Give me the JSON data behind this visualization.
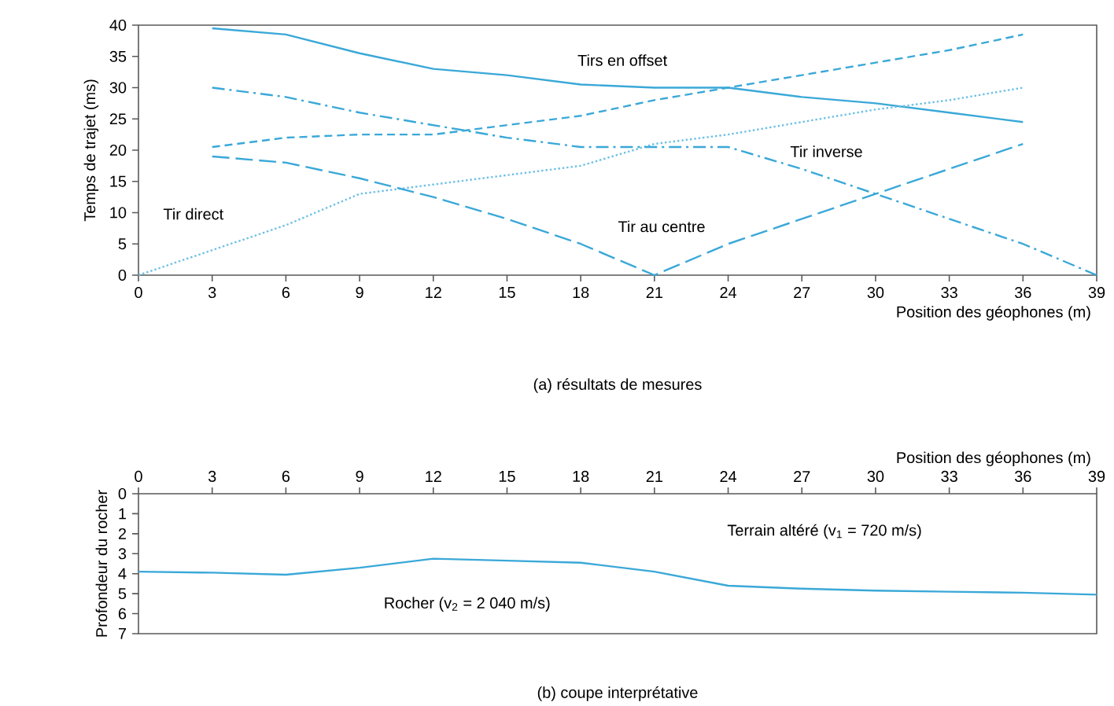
{
  "chart_data": [
    {
      "type": "line",
      "xlabel": "Position des géophones (m)",
      "ylabel": "Temps de trajet (ms)",
      "xlim": [
        0,
        39
      ],
      "xticks": [
        0,
        3,
        6,
        9,
        12,
        15,
        18,
        21,
        24,
        27,
        30,
        33,
        36,
        39
      ],
      "ylim": [
        0,
        40
      ],
      "yticks": [
        0,
        5,
        10,
        15,
        20,
        25,
        30,
        35,
        40
      ],
      "series": [
        {
          "color": "#3aa8d8",
          "line_style": "solid",
          "x": [
            3,
            6,
            9,
            12,
            15,
            18,
            21,
            24,
            27,
            30,
            33,
            36
          ],
          "values": [
            39.5,
            38.5,
            35.5,
            33,
            32,
            30.5,
            30,
            30,
            28.5,
            27.5,
            26,
            24.5
          ]
        },
        {
          "color": "#3aa8d8",
          "line_style": "dashed",
          "x": [
            3,
            6,
            9,
            12,
            15,
            18,
            21,
            24,
            27,
            30,
            33,
            36
          ],
          "values": [
            20.5,
            22,
            22.5,
            22.5,
            24,
            25.5,
            28,
            30,
            32,
            34,
            36,
            38.5
          ]
        },
        {
          "color": "#6cc0e4",
          "line_style": "dotted",
          "x": [
            0,
            3,
            6,
            9,
            12,
            15,
            18,
            21,
            24,
            27,
            30,
            33,
            36
          ],
          "values": [
            0,
            4,
            8,
            13,
            14.5,
            16,
            17.5,
            21,
            22.5,
            24.5,
            26.5,
            28,
            30
          ]
        },
        {
          "color": "#3aa8d8",
          "line_style": "dashdot",
          "x": [
            3,
            6,
            9,
            12,
            15,
            18,
            21,
            24,
            27,
            30,
            33,
            36,
            39
          ],
          "values": [
            30,
            28.5,
            26,
            24,
            22,
            20.5,
            20.5,
            20.5,
            17,
            13,
            9,
            5,
            0
          ]
        },
        {
          "color": "#3aa8d8",
          "line_style": "longdashed",
          "x": [
            3,
            6,
            9,
            12,
            15,
            18,
            21,
            24,
            27,
            30,
            33,
            36
          ],
          "values": [
            19,
            18,
            15.5,
            12.5,
            9,
            5,
            0,
            5,
            9,
            13,
            17,
            21
          ]
        }
      ],
      "annotations": [
        "Tirs en offset",
        "Tir inverse",
        "Tir direct",
        "Tir au centre",
        "(a) résultats de mesures"
      ]
    },
    {
      "type": "line",
      "xlabel": "Position des géophones (m)",
      "ylabel": "Profondeur du rocher",
      "xlim": [
        0,
        39
      ],
      "xticks": [
        0,
        3,
        6,
        9,
        12,
        15,
        18,
        21,
        24,
        27,
        30,
        33,
        36,
        39
      ],
      "ylim": [
        7,
        0
      ],
      "yticks": [
        0,
        1,
        2,
        3,
        4,
        5,
        6,
        7
      ],
      "series": [
        {
          "color": "#3aa8d8",
          "line_style": "solid",
          "x": [
            0,
            3,
            6,
            9,
            12,
            15,
            18,
            21,
            24,
            27,
            30,
            33,
            36,
            39
          ],
          "values": [
            3.9,
            3.95,
            4.05,
            3.7,
            3.25,
            3.35,
            3.45,
            3.9,
            4.6,
            4.75,
            4.85,
            4.9,
            4.95,
            5.05
          ]
        }
      ],
      "annotations": [
        "Terrain altéré (v$_{1}$ = 720 m/s)",
        "Rocher (v$_{2}$ = 2 040 m/s)",
        "(b) coupe interprétative"
      ]
    }
  ]
}
